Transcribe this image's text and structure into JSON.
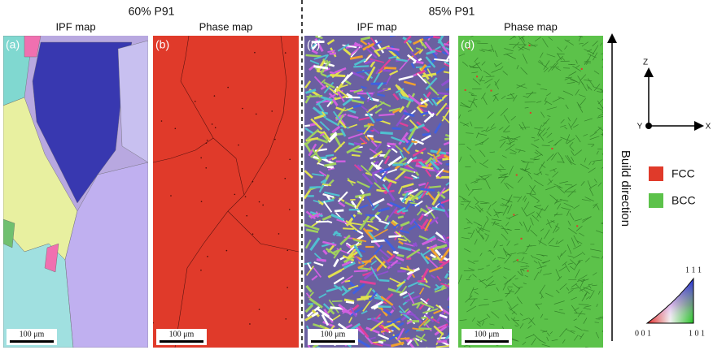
{
  "groups": [
    {
      "title": "60% P91",
      "panels": [
        {
          "label": "(a)",
          "title": "IPF map",
          "scale_bar": "100 μm"
        },
        {
          "label": "(b)",
          "title": "Phase map",
          "scale_bar": "100 μm"
        }
      ]
    },
    {
      "title": "85% P91",
      "panels": [
        {
          "label": "(c)",
          "title": "IPF map",
          "scale_bar": "100 μm"
        },
        {
          "label": "(d)",
          "title": "Phase map",
          "scale_bar": "100 μm"
        }
      ]
    }
  ],
  "axes": {
    "z": "Z",
    "y": "Y",
    "x": "X"
  },
  "build_direction": "Build direction",
  "legend": [
    {
      "name": "FCC",
      "color": "#e03a2a"
    },
    {
      "name": "BCC",
      "color": "#5cc24a"
    }
  ],
  "ipf_triangle": {
    "top": "1 1 1",
    "left": "0 0 1",
    "right": "1 0 1"
  }
}
